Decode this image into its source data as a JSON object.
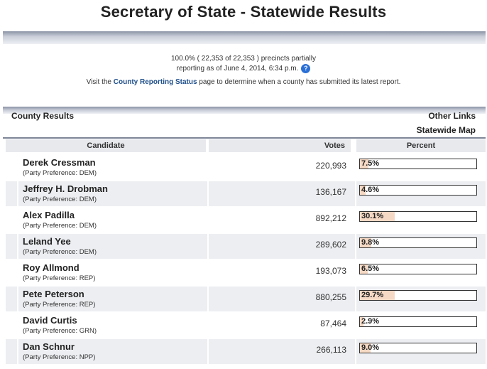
{
  "page": {
    "title": "Secretary of State - Statewide Results"
  },
  "status": {
    "line1": "100.0% ( 22,353 of 22,353 ) precincts partially",
    "line2": "reporting as of June 4, 2014, 6:34 p.m.",
    "help_icon": "?",
    "visit_prefix": "Visit the",
    "visit_link": "County Reporting Status",
    "visit_suffix": "page to determine when a county has submitted its latest report."
  },
  "section": {
    "county_results": "County Results",
    "other_links": "Other Links",
    "statewide_map": "Statewide Map"
  },
  "table": {
    "headers": {
      "candidate": "Candidate",
      "votes": "Votes",
      "percent": "Percent"
    },
    "rows": [
      {
        "name": "Derek Cressman",
        "party": "(Party Preference: DEM)",
        "votes": "220,993",
        "percent_label": "7.5%",
        "percent": 7.5
      },
      {
        "name": "Jeffrey H. Drobman",
        "party": "(Party Preference: DEM)",
        "votes": "136,167",
        "percent_label": "4.6%",
        "percent": 4.6
      },
      {
        "name": "Alex Padilla",
        "party": "(Party Preference: DEM)",
        "votes": "892,212",
        "percent_label": "30.1%",
        "percent": 30.1
      },
      {
        "name": "Leland Yee",
        "party": "(Party Preference: DEM)",
        "votes": "289,602",
        "percent_label": "9.8%",
        "percent": 9.8
      },
      {
        "name": "Roy Allmond",
        "party": "(Party Preference: REP)",
        "votes": "193,073",
        "percent_label": "6.5%",
        "percent": 6.5
      },
      {
        "name": "Pete Peterson",
        "party": "(Party Preference: REP)",
        "votes": "880,255",
        "percent_label": "29.7%",
        "percent": 29.7
      },
      {
        "name": "David Curtis",
        "party": "(Party Preference: GRN)",
        "votes": "87,464",
        "percent_label": "2.9%",
        "percent": 2.9
      },
      {
        "name": "Dan Schnur",
        "party": "(Party Preference: NPP)",
        "votes": "266,113",
        "percent_label": "9.0%",
        "percent": 9.0
      }
    ]
  },
  "colors": {
    "bar_fill": "#f6d9c4",
    "link": "#1f4f8a",
    "row_shade": "#eceef1"
  }
}
